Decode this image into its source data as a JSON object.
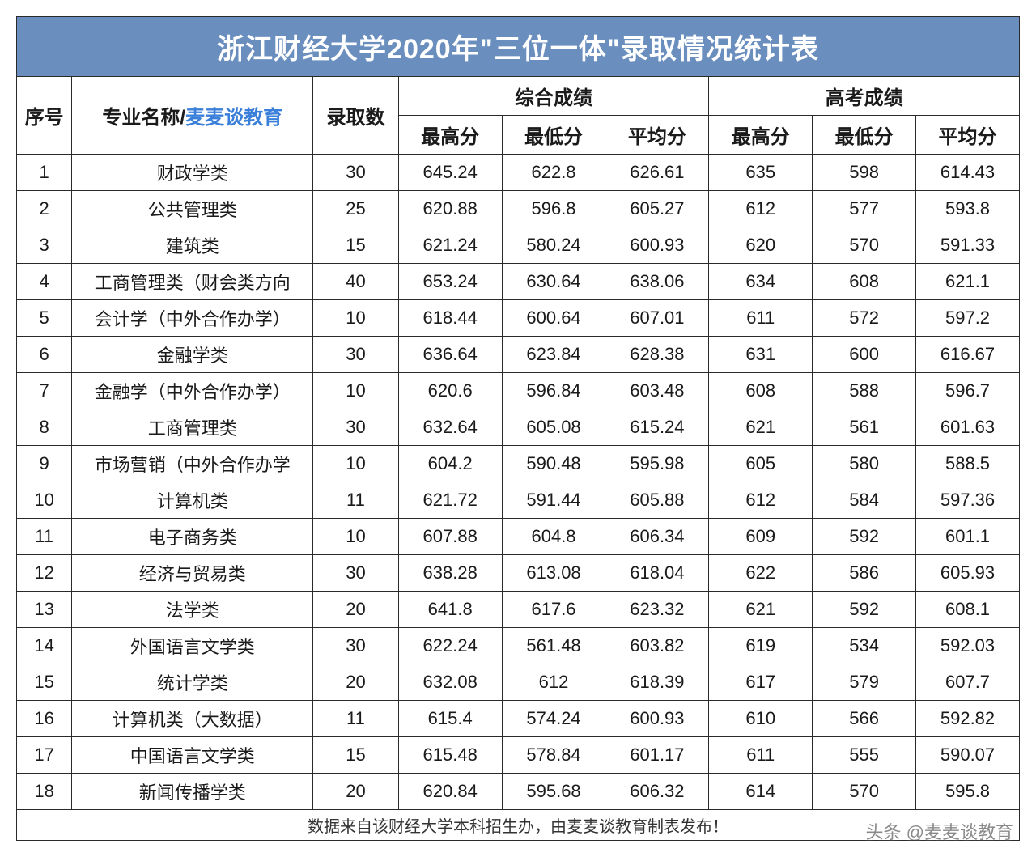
{
  "title": "浙江财经大学2020年\"三位一体\"录取情况统计表",
  "headers": {
    "seq": "序号",
    "major_prefix": "专业名称/",
    "major_watermark": "麦麦谈教育",
    "count": "录取数",
    "group1": "综合成绩",
    "group2": "高考成绩",
    "max": "最高分",
    "min": "最低分",
    "avg": "平均分"
  },
  "rows": [
    {
      "n": "1",
      "major": "财政学类",
      "count": "30",
      "c_max": "645.24",
      "c_min": "622.8",
      "c_avg": "626.61",
      "g_max": "635",
      "g_min": "598",
      "g_avg": "614.43"
    },
    {
      "n": "2",
      "major": "公共管理类",
      "count": "25",
      "c_max": "620.88",
      "c_min": "596.8",
      "c_avg": "605.27",
      "g_max": "612",
      "g_min": "577",
      "g_avg": "593.8"
    },
    {
      "n": "3",
      "major": "建筑类",
      "count": "15",
      "c_max": "621.24",
      "c_min": "580.24",
      "c_avg": "600.93",
      "g_max": "620",
      "g_min": "570",
      "g_avg": "591.33"
    },
    {
      "n": "4",
      "major": "工商管理类（财会类方向",
      "count": "40",
      "c_max": "653.24",
      "c_min": "630.64",
      "c_avg": "638.06",
      "g_max": "634",
      "g_min": "608",
      "g_avg": "621.1"
    },
    {
      "n": "5",
      "major": "会计学（中外合作办学）",
      "count": "10",
      "c_max": "618.44",
      "c_min": "600.64",
      "c_avg": "607.01",
      "g_max": "611",
      "g_min": "572",
      "g_avg": "597.2"
    },
    {
      "n": "6",
      "major": "金融学类",
      "count": "30",
      "c_max": "636.64",
      "c_min": "623.84",
      "c_avg": "628.38",
      "g_max": "631",
      "g_min": "600",
      "g_avg": "616.67"
    },
    {
      "n": "7",
      "major": "金融学（中外合作办学）",
      "count": "10",
      "c_max": "620.6",
      "c_min": "596.84",
      "c_avg": "603.48",
      "g_max": "608",
      "g_min": "588",
      "g_avg": "596.7"
    },
    {
      "n": "8",
      "major": "工商管理类",
      "count": "30",
      "c_max": "632.64",
      "c_min": "605.08",
      "c_avg": "615.24",
      "g_max": "621",
      "g_min": "561",
      "g_avg": "601.63"
    },
    {
      "n": "9",
      "major": "市场营销（中外合作办学",
      "count": "10",
      "c_max": "604.2",
      "c_min": "590.48",
      "c_avg": "595.98",
      "g_max": "605",
      "g_min": "580",
      "g_avg": "588.5"
    },
    {
      "n": "10",
      "major": "计算机类",
      "count": "11",
      "c_max": "621.72",
      "c_min": "591.44",
      "c_avg": "605.88",
      "g_max": "612",
      "g_min": "584",
      "g_avg": "597.36"
    },
    {
      "n": "11",
      "major": "电子商务类",
      "count": "10",
      "c_max": "607.88",
      "c_min": "604.8",
      "c_avg": "606.34",
      "g_max": "609",
      "g_min": "592",
      "g_avg": "601.1"
    },
    {
      "n": "12",
      "major": "经济与贸易类",
      "count": "30",
      "c_max": "638.28",
      "c_min": "613.08",
      "c_avg": "618.04",
      "g_max": "622",
      "g_min": "586",
      "g_avg": "605.93"
    },
    {
      "n": "13",
      "major": "法学类",
      "count": "20",
      "c_max": "641.8",
      "c_min": "617.6",
      "c_avg": "623.32",
      "g_max": "621",
      "g_min": "592",
      "g_avg": "608.1"
    },
    {
      "n": "14",
      "major": "外国语言文学类",
      "count": "30",
      "c_max": "622.24",
      "c_min": "561.48",
      "c_avg": "603.82",
      "g_max": "619",
      "g_min": "534",
      "g_avg": "592.03"
    },
    {
      "n": "15",
      "major": "统计学类",
      "count": "20",
      "c_max": "632.08",
      "c_min": "612",
      "c_avg": "618.39",
      "g_max": "617",
      "g_min": "579",
      "g_avg": "607.7"
    },
    {
      "n": "16",
      "major": "计算机类（大数据）",
      "count": "11",
      "c_max": "615.4",
      "c_min": "574.24",
      "c_avg": "600.93",
      "g_max": "610",
      "g_min": "566",
      "g_avg": "592.82"
    },
    {
      "n": "17",
      "major": "中国语言文学类",
      "count": "15",
      "c_max": "615.48",
      "c_min": "578.84",
      "c_avg": "601.17",
      "g_max": "611",
      "g_min": "555",
      "g_avg": "590.07"
    },
    {
      "n": "18",
      "major": "新闻传播学类",
      "count": "20",
      "c_max": "620.84",
      "c_min": "595.68",
      "c_avg": "606.32",
      "g_max": "614",
      "g_min": "570",
      "g_avg": "595.8"
    }
  ],
  "footer": "数据来自该财经大学本科招生办，由麦麦谈教育制表发布！",
  "bottom_watermark": "头条 @麦麦谈教育",
  "style": {
    "title_bg": "#6a8fbf",
    "title_color": "#ffffff",
    "border_color": "#2a2a2a",
    "text_color": "#1a1a1a",
    "watermark_color": "#3a7fd9",
    "font_family": "Microsoft YaHei, SimHei, Arial, sans-serif",
    "title_fontsize": 34,
    "header_fontsize": 24,
    "cell_fontsize": 22,
    "footer_fontsize": 20,
    "column_widths_pct": {
      "seq": 5.5,
      "name": 24,
      "count": 8.5,
      "score": 10.3
    }
  }
}
